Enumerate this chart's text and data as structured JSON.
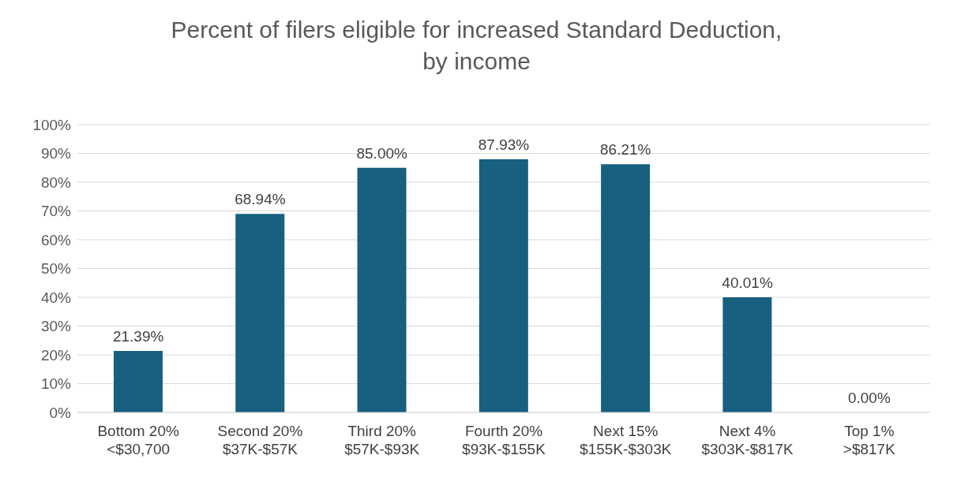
{
  "chart_data": {
    "type": "bar",
    "title": "Percent of filers eligible for increased Standard Deduction,\nby income",
    "categories": [
      "Bottom 20%\n<$30,700",
      "Second 20%\n$37K-$57K",
      "Third 20%\n$57K-$93K",
      "Fourth 20%\n$93K-$155K",
      "Next 15%\n$155K-$303K",
      "Next 4%\n$303K-$817K",
      "Top 1%\n>$817K"
    ],
    "values": [
      21.39,
      68.94,
      85.0,
      87.93,
      86.21,
      40.01,
      0.0
    ],
    "value_labels": [
      "21.39%",
      "68.94%",
      "85.00%",
      "87.93%",
      "86.21%",
      "40.01%",
      "0.00%"
    ],
    "color": "#17607f",
    "ylim": [
      0,
      100
    ],
    "yticks": [
      {
        "value": 0,
        "label": "0%"
      },
      {
        "value": 10,
        "label": "10%"
      },
      {
        "value": 20,
        "label": "20%"
      },
      {
        "value": 30,
        "label": "30%"
      },
      {
        "value": 40,
        "label": "40%"
      },
      {
        "value": 50,
        "label": "50%"
      },
      {
        "value": 60,
        "label": "60%"
      },
      {
        "value": 70,
        "label": "70%"
      },
      {
        "value": 80,
        "label": "80%"
      },
      {
        "value": 90,
        "label": "90%"
      },
      {
        "value": 100,
        "label": "100%"
      }
    ],
    "grid": "y",
    "legend": false
  }
}
